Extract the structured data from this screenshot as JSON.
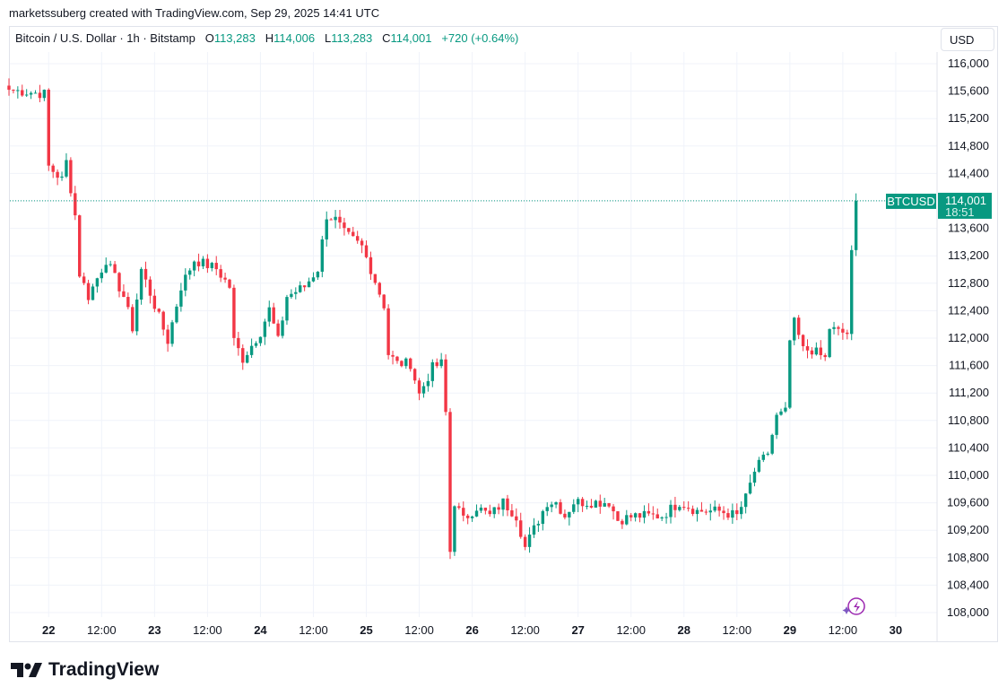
{
  "header": {
    "credit": "marketssuberg created with TradingView.com, Sep 29, 2025 14:41 UTC"
  },
  "legend": {
    "symbol": "Bitcoin / U.S. Dollar · 1h · Bitstamp",
    "o_label": "O",
    "o": "113,283",
    "h_label": "H",
    "h": "114,006",
    "l_label": "L",
    "l": "113,283",
    "c_label": "C",
    "c": "114,001",
    "change": "+720 (+0.64%)"
  },
  "currency_button": "USD",
  "last_price": {
    "symbol": "BTCUSD",
    "price": "114,001",
    "countdown": "18:51"
  },
  "logo": "TradingView",
  "colors": {
    "up": "#089981",
    "down": "#f23645"
  },
  "chart_data": {
    "type": "candlestick",
    "title": "Bitcoin / U.S. Dollar · 1h · Bitstamp",
    "interval": "1h",
    "ylim": [
      107800,
      116250
    ],
    "y_ticks": [
      "108,000",
      "108,400",
      "108,800",
      "109,200",
      "109,600",
      "110,000",
      "110,400",
      "110,800",
      "111,200",
      "111,600",
      "112,000",
      "112,400",
      "112,800",
      "113,200",
      "113,600",
      "114,000",
      "114,400",
      "114,800",
      "115,200",
      "115,600",
      "116,000"
    ],
    "x_ticks": [
      "22",
      "12:00",
      "23",
      "12:00",
      "24",
      "12:00",
      "25",
      "12:00",
      "26",
      "12:00",
      "27",
      "12:00",
      "28",
      "12:00",
      "29",
      "12:00",
      "30"
    ],
    "first_hour": "Sep 21 15:00",
    "close_keypoints": [
      [
        0,
        115620
      ],
      [
        8,
        115560
      ],
      [
        9,
        114500
      ],
      [
        12,
        114310
      ],
      [
        13,
        114570
      ],
      [
        15,
        113790
      ],
      [
        16,
        112940
      ],
      [
        18,
        112610
      ],
      [
        22,
        113140
      ],
      [
        26,
        112610
      ],
      [
        28,
        112150
      ],
      [
        30,
        113000
      ],
      [
        36,
        111960
      ],
      [
        39,
        112750
      ],
      [
        42,
        113140
      ],
      [
        47,
        113010
      ],
      [
        50,
        112750
      ],
      [
        51,
        111960
      ],
      [
        53,
        111700
      ],
      [
        57,
        112090
      ],
      [
        59,
        112420
      ],
      [
        61,
        111960
      ],
      [
        63,
        112610
      ],
      [
        67,
        112750
      ],
      [
        70,
        113010
      ],
      [
        72,
        113790
      ],
      [
        74,
        113725
      ],
      [
        76,
        113530
      ],
      [
        80,
        113330
      ],
      [
        82,
        113010
      ],
      [
        85,
        112480
      ],
      [
        86,
        111770
      ],
      [
        88,
        111630
      ],
      [
        91,
        111630
      ],
      [
        93,
        111180
      ],
      [
        96,
        111570
      ],
      [
        98,
        111630
      ],
      [
        99,
        110910
      ],
      [
        100,
        108890
      ],
      [
        101,
        109610
      ],
      [
        103,
        109350
      ],
      [
        106,
        109540
      ],
      [
        109,
        109410
      ],
      [
        112,
        109610
      ],
      [
        115,
        109410
      ],
      [
        117,
        108950
      ],
      [
        120,
        109350
      ],
      [
        122,
        109610
      ],
      [
        124,
        109610
      ],
      [
        126,
        109410
      ],
      [
        128,
        109610
      ],
      [
        132,
        109610
      ],
      [
        136,
        109610
      ],
      [
        138,
        109350
      ],
      [
        142,
        109410
      ],
      [
        148,
        109410
      ],
      [
        152,
        109610
      ],
      [
        156,
        109480
      ],
      [
        161,
        109480
      ],
      [
        165,
        109410
      ],
      [
        167,
        109670
      ],
      [
        169,
        110060
      ],
      [
        172,
        110330
      ],
      [
        174,
        110850
      ],
      [
        176,
        110920
      ],
      [
        177,
        111960
      ],
      [
        178,
        112220
      ],
      [
        180,
        111830
      ],
      [
        182,
        111830
      ],
      [
        185,
        111700
      ],
      [
        186,
        112150
      ],
      [
        188,
        112090
      ],
      [
        190,
        112070
      ],
      [
        191,
        113283
      ],
      [
        192,
        114001
      ]
    ],
    "last_close": 114001
  }
}
